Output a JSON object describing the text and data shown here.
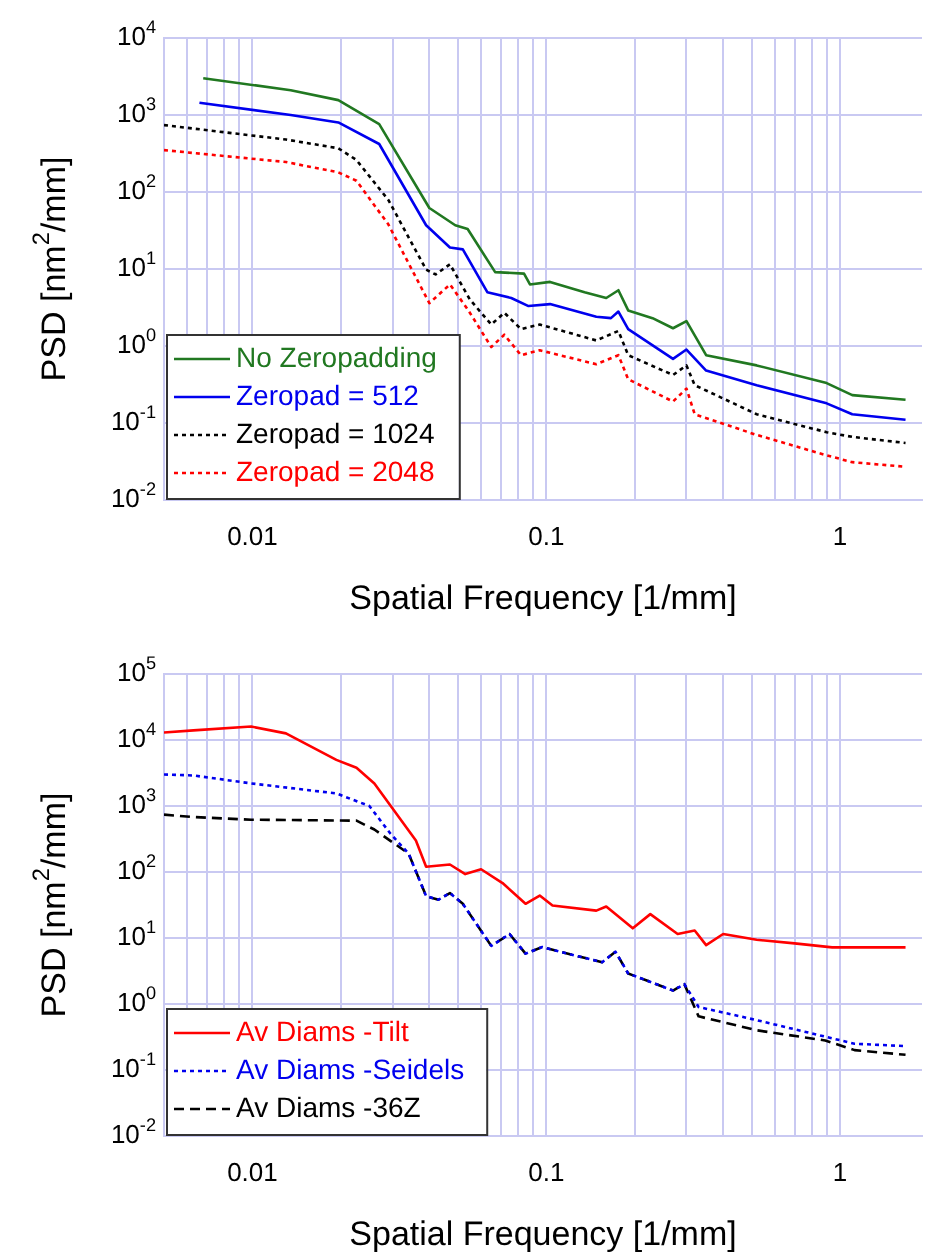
{
  "chart_data": [
    {
      "type": "line",
      "xlabel": "Spatial Frequency [1/mm]",
      "ylabel": "PSD [nm$^{2}$/mm]",
      "log": "xy",
      "grid": true,
      "legend": "bottom left",
      "xlim": [
        0.005,
        1.9
      ],
      "ylim": [
        0.01,
        10000
      ],
      "xticks": [
        {
          "value": 0.005,
          "label": null
        },
        {
          "value": 0.006,
          "label": null
        },
        {
          "value": 0.007,
          "label": null
        },
        {
          "value": 0.008,
          "label": null
        },
        {
          "value": 0.009,
          "label": null
        },
        0.01,
        {
          "value": 0.02,
          "label": null
        },
        {
          "value": 0.03,
          "label": null
        },
        {
          "value": 0.04,
          "label": null
        },
        {
          "value": 0.05,
          "label": null
        },
        {
          "value": 0.06,
          "label": null
        },
        {
          "value": 0.07,
          "label": null
        },
        {
          "value": 0.08,
          "label": null
        },
        {
          "value": 0.09,
          "label": null
        },
        0.1,
        {
          "value": 0.2,
          "label": null
        },
        {
          "value": 0.3,
          "label": null
        },
        {
          "value": 0.4,
          "label": null
        },
        {
          "value": 0.5,
          "label": null
        },
        {
          "value": 0.6,
          "label": null
        },
        {
          "value": 0.7,
          "label": null
        },
        {
          "value": 0.8,
          "label": null
        },
        {
          "value": 0.9,
          "label": null
        },
        1
      ],
      "yticks": [
        {
          "value": 0.01,
          "label": "10$^{-2}$"
        },
        {
          "value": 0.1,
          "label": "10$^{-1}$"
        },
        {
          "value": 1,
          "label": "10$^{0}$"
        },
        {
          "value": 10,
          "label": "10$^{1}$"
        },
        {
          "value": 100,
          "label": "10$^{2}$"
        },
        {
          "value": 1000,
          "label": "10$^{3}$"
        },
        {
          "value": 10000,
          "label": "10$^{4}$"
        }
      ],
      "series": [
        {
          "name": "No Zeropadding",
          "color": "#217821",
          "line_style": "solid",
          "x": [
            0.0068,
            0.0135,
            0.0196,
            0.027,
            0.04,
            0.049,
            0.054,
            0.067,
            0.084,
            0.088,
            0.103,
            0.135,
            0.16,
            0.176,
            0.19,
            0.23,
            0.27,
            0.3,
            0.35,
            0.52,
            0.9,
            1.1,
            1.67
          ],
          "values": [
            3000,
            2100,
            1560,
            760,
            62,
            37,
            33,
            9.1,
            8.7,
            6.3,
            6.8,
            5.0,
            4.2,
            5.3,
            2.9,
            2.3,
            1.7,
            2.1,
            0.76,
            0.56,
            0.33,
            0.23,
            0.2
          ]
        },
        {
          "name": "Zeropad = 512",
          "color": "#0000ee",
          "line_style": "solid",
          "x": [
            0.0066,
            0.0135,
            0.0196,
            0.027,
            0.039,
            0.047,
            0.052,
            0.063,
            0.076,
            0.087,
            0.103,
            0.148,
            0.166,
            0.176,
            0.19,
            0.27,
            0.3,
            0.35,
            0.52,
            0.9,
            1.1,
            1.67
          ],
          "values": [
            1440,
            1000,
            800,
            420,
            37,
            19,
            18,
            5,
            4.2,
            3.3,
            3.5,
            2.4,
            2.3,
            2.8,
            1.66,
            0.68,
            0.9,
            0.48,
            0.31,
            0.18,
            0.13,
            0.11
          ]
        },
        {
          "name": "Zeropad = 1024",
          "color": "#000000",
          "line_style": "dotted",
          "x": [
            0.005,
            0.013,
            0.0196,
            0.0226,
            0.029,
            0.039,
            0.042,
            0.047,
            0.055,
            0.065,
            0.072,
            0.082,
            0.095,
            0.148,
            0.176,
            0.19,
            0.27,
            0.3,
            0.32,
            0.52,
            0.9,
            1.1,
            1.67
          ],
          "values": [
            740,
            480,
            370,
            260,
            79,
            9.8,
            8.5,
            11.5,
            4,
            1.9,
            2.7,
            1.66,
            1.9,
            1.18,
            1.57,
            0.76,
            0.42,
            0.56,
            0.31,
            0.13,
            0.076,
            0.066,
            0.055
          ]
        },
        {
          "name": "Zeropad = 2048",
          "color": "#ff0000",
          "line_style": "dotted",
          "x": [
            0.005,
            0.013,
            0.0196,
            0.0226,
            0.029,
            0.04,
            0.047,
            0.054,
            0.065,
            0.072,
            0.082,
            0.095,
            0.148,
            0.176,
            0.19,
            0.27,
            0.3,
            0.32,
            0.52,
            0.9,
            1.1,
            1.67
          ],
          "values": [
            350,
            245,
            180,
            140,
            38,
            3.6,
            6.3,
            3,
            0.97,
            1.4,
            0.76,
            0.88,
            0.58,
            0.76,
            0.37,
            0.19,
            0.28,
            0.13,
            0.07,
            0.038,
            0.031,
            0.027
          ]
        }
      ]
    },
    {
      "type": "line",
      "xlabel": "Spatial Frequency [1/mm]",
      "ylabel": "PSD [nm$^{2}$/mm]",
      "log": "xy",
      "grid": true,
      "legend": "bottom left",
      "xlim": [
        0.005,
        1.9
      ],
      "ylim": [
        0.01,
        100000
      ],
      "xticks": [
        {
          "value": 0.005,
          "label": null
        },
        {
          "value": 0.006,
          "label": null
        },
        {
          "value": 0.007,
          "label": null
        },
        {
          "value": 0.008,
          "label": null
        },
        {
          "value": 0.009,
          "label": null
        },
        0.01,
        {
          "value": 0.02,
          "label": null
        },
        {
          "value": 0.03,
          "label": null
        },
        {
          "value": 0.04,
          "label": null
        },
        {
          "value": 0.05,
          "label": null
        },
        {
          "value": 0.06,
          "label": null
        },
        {
          "value": 0.07,
          "label": null
        },
        {
          "value": 0.08,
          "label": null
        },
        {
          "value": 0.09,
          "label": null
        },
        0.1,
        {
          "value": 0.2,
          "label": null
        },
        {
          "value": 0.3,
          "label": null
        },
        {
          "value": 0.4,
          "label": null
        },
        {
          "value": 0.5,
          "label": null
        },
        {
          "value": 0.6,
          "label": null
        },
        {
          "value": 0.7,
          "label": null
        },
        {
          "value": 0.8,
          "label": null
        },
        {
          "value": 0.9,
          "label": null
        },
        1
      ],
      "yticks": [
        {
          "value": 0.01,
          "label": "10$^{-2}$"
        },
        {
          "value": 0.1,
          "label": "10$^{-1}$"
        },
        {
          "value": 1,
          "label": "10$^{0}$"
        },
        {
          "value": 10,
          "label": "10$^{1}$"
        },
        {
          "value": 100,
          "label": "10$^{2}$"
        },
        {
          "value": 1000,
          "label": "10$^{3}$"
        },
        {
          "value": 10000,
          "label": "10$^{4}$"
        },
        {
          "value": 100000,
          "label": "10$^{5}$"
        }
      ],
      "series": [
        {
          "name": "Av Diams -Tilt",
          "color": "#ff0000",
          "line_style": "solid",
          "x": [
            0.005,
            0.0063,
            0.0099,
            0.013,
            0.0193,
            0.0226,
            0.026,
            0.036,
            0.039,
            0.047,
            0.053,
            0.06,
            0.071,
            0.085,
            0.095,
            0.105,
            0.148,
            0.16,
            0.197,
            0.226,
            0.28,
            0.32,
            0.35,
            0.4,
            0.52,
            0.7,
            0.94,
            1.67
          ],
          "values": [
            13000,
            14000,
            16000,
            12600,
            5000,
            3800,
            2200,
            300,
            120,
            130,
            93,
            110,
            68,
            33,
            44,
            31,
            26,
            30,
            14,
            23,
            11.5,
            13,
            7.8,
            11.5,
            9.4,
            8.3,
            7.2,
            7.2
          ]
        },
        {
          "name": "Av Diams -Seidels",
          "color": "#0000ee",
          "line_style": "dotted",
          "x": [
            0.005,
            0.0063,
            0.0099,
            0.0193,
            0.025,
            0.0295,
            0.034,
            0.039,
            0.043,
            0.047,
            0.052,
            0.065,
            0.075,
            0.085,
            0.097,
            0.126,
            0.155,
            0.172,
            0.19,
            0.27,
            0.295,
            0.33,
            0.52,
            0.89,
            1.12,
            1.67
          ],
          "values": [
            3000,
            2900,
            2200,
            1550,
            1000,
            380,
            190,
            43,
            38,
            48,
            33,
            7.6,
            11.5,
            5.8,
            7.3,
            5.4,
            4.3,
            6.2,
            2.9,
            1.6,
            2.0,
            0.9,
            0.57,
            0.32,
            0.25,
            0.23
          ]
        },
        {
          "name": "Av Diams -36Z",
          "color": "#000000",
          "line_style": "dashed",
          "x": [
            0.005,
            0.0063,
            0.0099,
            0.0226,
            0.026,
            0.034,
            0.039,
            0.043,
            0.047,
            0.052,
            0.065,
            0.075,
            0.085,
            0.097,
            0.126,
            0.155,
            0.172,
            0.19,
            0.27,
            0.295,
            0.33,
            0.52,
            0.89,
            1.12,
            1.67
          ],
          "values": [
            740,
            680,
            620,
            600,
            440,
            190,
            43,
            38,
            48,
            33,
            7.6,
            11.5,
            5.8,
            7.3,
            5.4,
            4.3,
            6.2,
            2.9,
            1.6,
            2.0,
            0.65,
            0.4,
            0.28,
            0.2,
            0.17
          ]
        }
      ]
    }
  ]
}
